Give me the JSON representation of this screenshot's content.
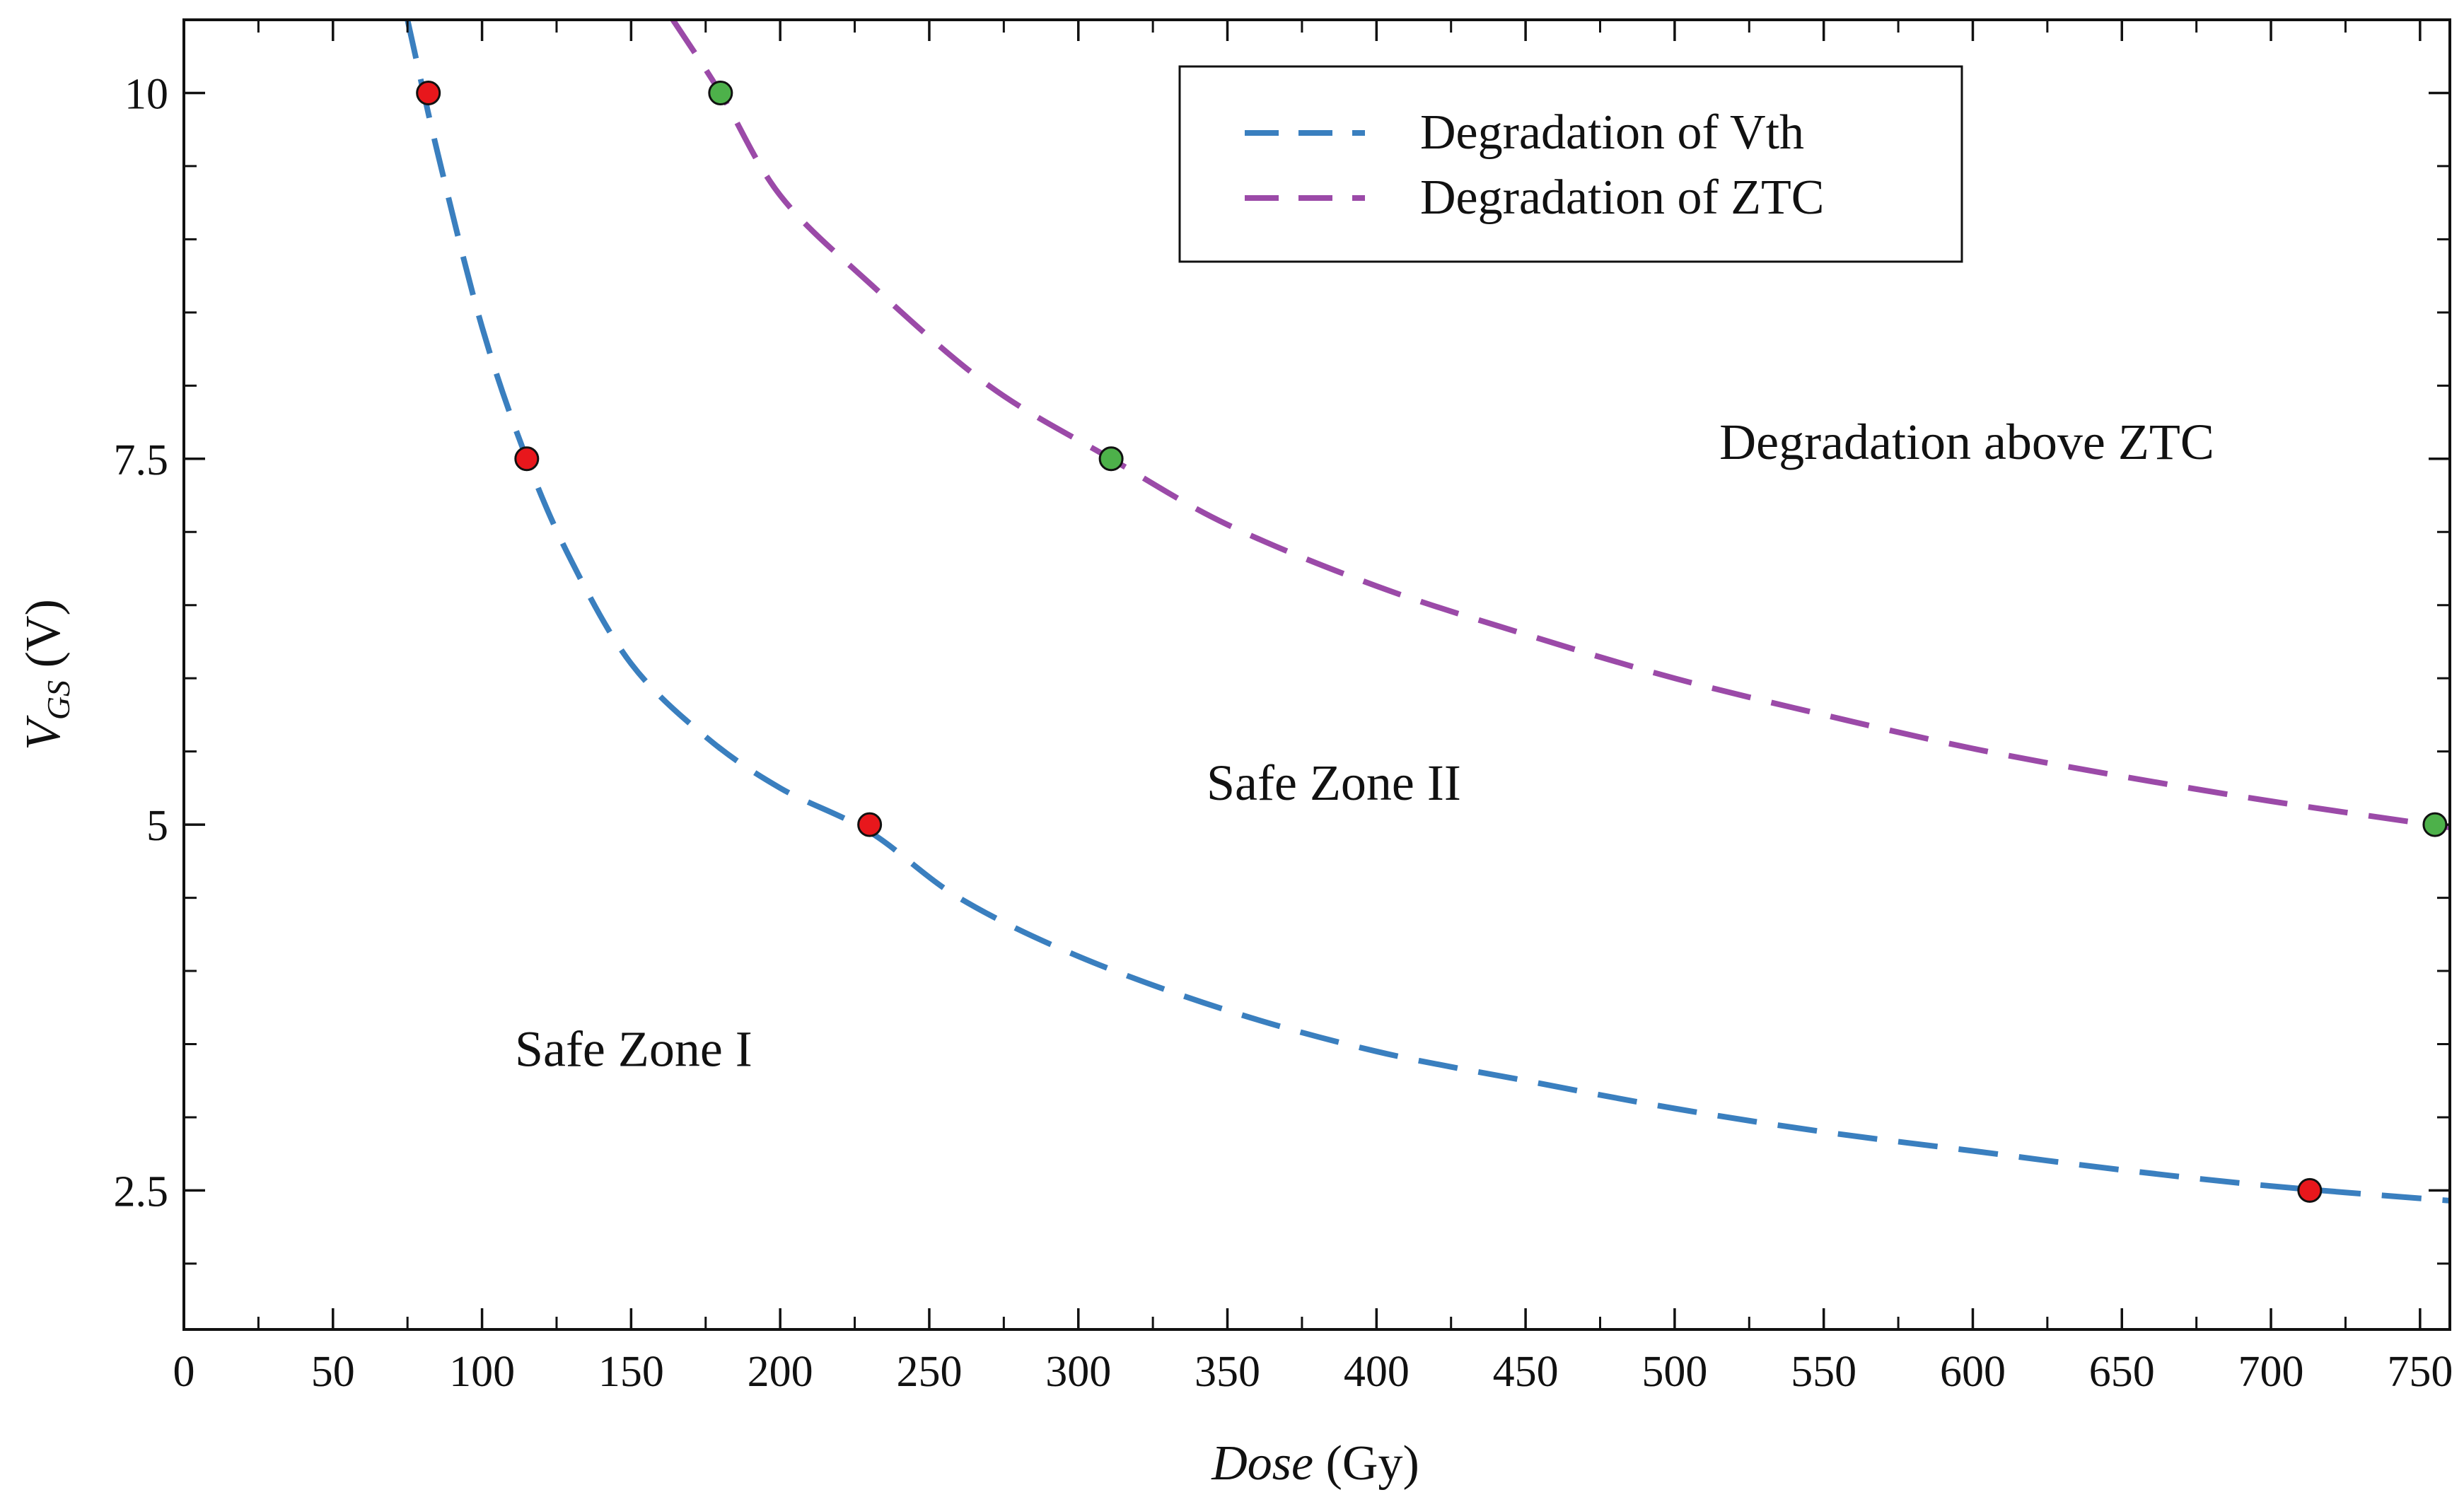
{
  "chart_data": {
    "type": "line",
    "title": "",
    "xlabel": {
      "italic": "Dose",
      "unit": "(Gy)"
    },
    "ylabel": {
      "symbol": "V",
      "subscript": "GS",
      "unit": "(V)"
    },
    "xlim": [
      0,
      760
    ],
    "ylim": [
      1.55,
      10.5
    ],
    "x_ticks": [
      0,
      50,
      100,
      150,
      200,
      250,
      300,
      350,
      400,
      450,
      500,
      550,
      600,
      650,
      700,
      750
    ],
    "x_tick_labels": [
      "0",
      "50",
      "100",
      "150",
      "200",
      "250",
      "300",
      "350",
      "400",
      "450",
      "500",
      "550",
      "600",
      "650",
      "700",
      "750"
    ],
    "x_minor_ticks": [
      25,
      75,
      125,
      175,
      225,
      275,
      325,
      375,
      425,
      475,
      525,
      575,
      625,
      675,
      725
    ],
    "y_ticks": [
      2.5,
      5,
      7.5,
      10
    ],
    "y_tick_labels": [
      "2.5",
      "5",
      "7.5",
      "10"
    ],
    "y_minor_ticks": [
      2.0,
      3.0,
      3.5,
      4.0,
      4.5,
      5.5,
      6.0,
      6.5,
      7.0,
      8.0,
      8.5,
      9.0,
      9.5
    ],
    "grid": false,
    "legend": {
      "placement": "top-right"
    },
    "series": [
      {
        "name": "Degradation of Vth",
        "color": "#3a7fbf",
        "line_style": "dashed",
        "curve": [
          [
            75,
            10.5
          ],
          [
            85,
            9.6
          ],
          [
            100,
            8.4
          ],
          [
            115,
            7.5
          ],
          [
            130,
            6.8
          ],
          [
            150,
            6.1
          ],
          [
            175,
            5.6
          ],
          [
            200,
            5.25
          ],
          [
            230,
            4.95
          ],
          [
            260,
            4.5
          ],
          [
            300,
            4.1
          ],
          [
            350,
            3.73
          ],
          [
            400,
            3.45
          ],
          [
            450,
            3.25
          ],
          [
            500,
            3.06
          ],
          [
            550,
            2.9
          ],
          [
            600,
            2.77
          ],
          [
            650,
            2.64
          ],
          [
            700,
            2.53
          ],
          [
            760,
            2.43
          ]
        ],
        "points": [
          {
            "x": 82,
            "y": 10
          },
          {
            "x": 115,
            "y": 7.5
          },
          {
            "x": 230,
            "y": 5
          },
          {
            "x": 713,
            "y": 2.5
          }
        ],
        "marker_color": "#e8171c"
      },
      {
        "name": "Degradation of ZTC",
        "color": "#9b4aa8",
        "line_style": "dashed",
        "curve": [
          [
            164,
            10.5
          ],
          [
            180,
            10.0
          ],
          [
            200,
            9.3
          ],
          [
            230,
            8.7
          ],
          [
            270,
            8.0
          ],
          [
            311,
            7.5
          ],
          [
            350,
            7.05
          ],
          [
            400,
            6.63
          ],
          [
            450,
            6.3
          ],
          [
            500,
            6.0
          ],
          [
            550,
            5.75
          ],
          [
            600,
            5.52
          ],
          [
            650,
            5.33
          ],
          [
            700,
            5.16
          ],
          [
            760,
            4.98
          ]
        ],
        "points": [
          {
            "x": 180,
            "y": 10
          },
          {
            "x": 311,
            "y": 7.5
          },
          {
            "x": 755,
            "y": 5
          }
        ],
        "marker_color": "#4db14a"
      }
    ],
    "annotations": [
      {
        "text": "Degradation above ZTC",
        "x": 515,
        "y": 7.5
      },
      {
        "text": "Safe Zone II",
        "x": 343,
        "y": 5.17
      },
      {
        "text": "Safe Zone I",
        "x": 111,
        "y": 3.35
      }
    ]
  }
}
